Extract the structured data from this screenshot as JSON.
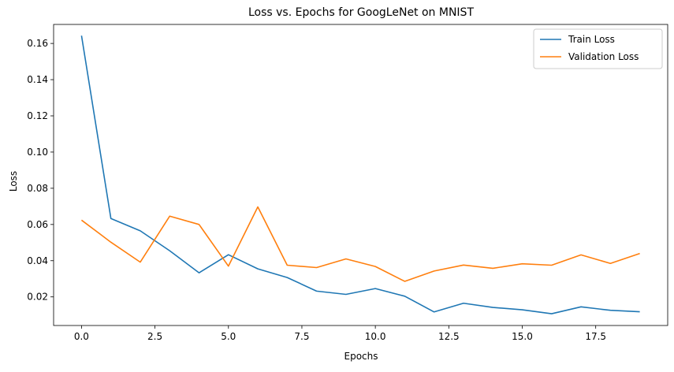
{
  "chart_data": {
    "type": "line",
    "title": "Loss vs. Epochs for GoogLeNet on MNIST",
    "xlabel": "Epochs",
    "ylabel": "Loss",
    "xlim": [
      -0.95,
      19.95
    ],
    "ylim": [
      0.0042,
      0.1705
    ],
    "xticks": [
      0.0,
      2.5,
      5.0,
      7.5,
      10.0,
      12.5,
      15.0,
      17.5
    ],
    "xtick_labels": [
      "0.0",
      "2.5",
      "5.0",
      "7.5",
      "10.0",
      "12.5",
      "15.0",
      "17.5"
    ],
    "yticks": [
      0.02,
      0.04,
      0.06,
      0.08,
      0.1,
      0.12,
      0.14,
      0.16
    ],
    "ytick_labels": [
      "0.02",
      "0.04",
      "0.06",
      "0.08",
      "0.10",
      "0.12",
      "0.14",
      "0.16"
    ],
    "grid": false,
    "legend_position": "top-right",
    "x": [
      0,
      1,
      2,
      3,
      4,
      5,
      6,
      7,
      8,
      9,
      10,
      11,
      12,
      13,
      14,
      15,
      16,
      17,
      18,
      19
    ],
    "series": [
      {
        "name": "Train Loss",
        "color": "#1f77b4",
        "values": [
          0.1643,
          0.0633,
          0.0565,
          0.0455,
          0.0333,
          0.0433,
          0.0355,
          0.0307,
          0.0232,
          0.0214,
          0.0246,
          0.0204,
          0.0117,
          0.0165,
          0.0142,
          0.0129,
          0.0107,
          0.0145,
          0.0126,
          0.0118
        ]
      },
      {
        "name": "Validation Loss",
        "color": "#ff7f0e",
        "values": [
          0.0624,
          0.0502,
          0.0392,
          0.0646,
          0.06,
          0.037,
          0.0697,
          0.0375,
          0.0362,
          0.041,
          0.0368,
          0.0286,
          0.0343,
          0.0376,
          0.0358,
          0.0383,
          0.0375,
          0.0432,
          0.0385,
          0.044
        ]
      }
    ]
  }
}
